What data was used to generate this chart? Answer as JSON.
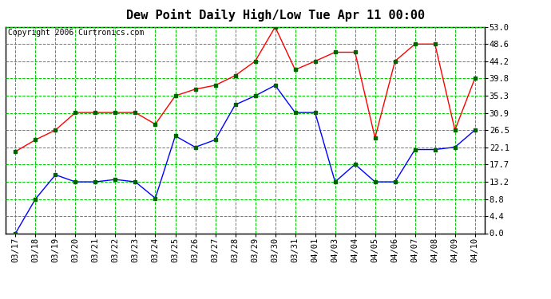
{
  "title": "Dew Point Daily High/Low Tue Apr 11 00:00",
  "copyright": "Copyright 2006 Curtronics.com",
  "x_labels": [
    "03/17",
    "03/18",
    "03/19",
    "03/20",
    "03/21",
    "03/22",
    "03/23",
    "03/24",
    "03/25",
    "03/26",
    "03/27",
    "03/28",
    "03/29",
    "03/30",
    "03/31",
    "04/01",
    "04/03",
    "04/04",
    "04/05",
    "04/06",
    "04/07",
    "04/08",
    "04/09",
    "04/10"
  ],
  "high_values": [
    21.0,
    24.0,
    26.5,
    31.0,
    31.0,
    31.0,
    31.0,
    28.0,
    35.3,
    37.0,
    38.0,
    40.5,
    44.2,
    53.0,
    42.0,
    44.2,
    46.5,
    46.5,
    24.5,
    44.2,
    48.6,
    48.6,
    26.5,
    39.8
  ],
  "low_values": [
    0.0,
    8.8,
    15.0,
    13.2,
    13.2,
    13.8,
    13.2,
    9.0,
    25.0,
    22.1,
    24.0,
    33.0,
    35.3,
    38.0,
    31.0,
    31.0,
    13.2,
    17.7,
    13.2,
    13.2,
    21.5,
    21.5,
    22.1,
    26.5
  ],
  "high_color": "#ff0000",
  "low_color": "#0000ff",
  "marker_color": "#006400",
  "bg_color": "#ffffff",
  "plot_bg_color": "#ffffff",
  "grid_color": "#00cc00",
  "title_fontsize": 11,
  "copyright_fontsize": 7,
  "tick_fontsize": 7.5,
  "y_ticks": [
    0.0,
    4.4,
    8.8,
    13.2,
    17.7,
    22.1,
    26.5,
    30.9,
    35.3,
    39.8,
    44.2,
    48.6,
    53.0
  ],
  "ylim": [
    0.0,
    53.0
  ],
  "figsize": [
    6.9,
    3.75
  ],
  "dpi": 100
}
